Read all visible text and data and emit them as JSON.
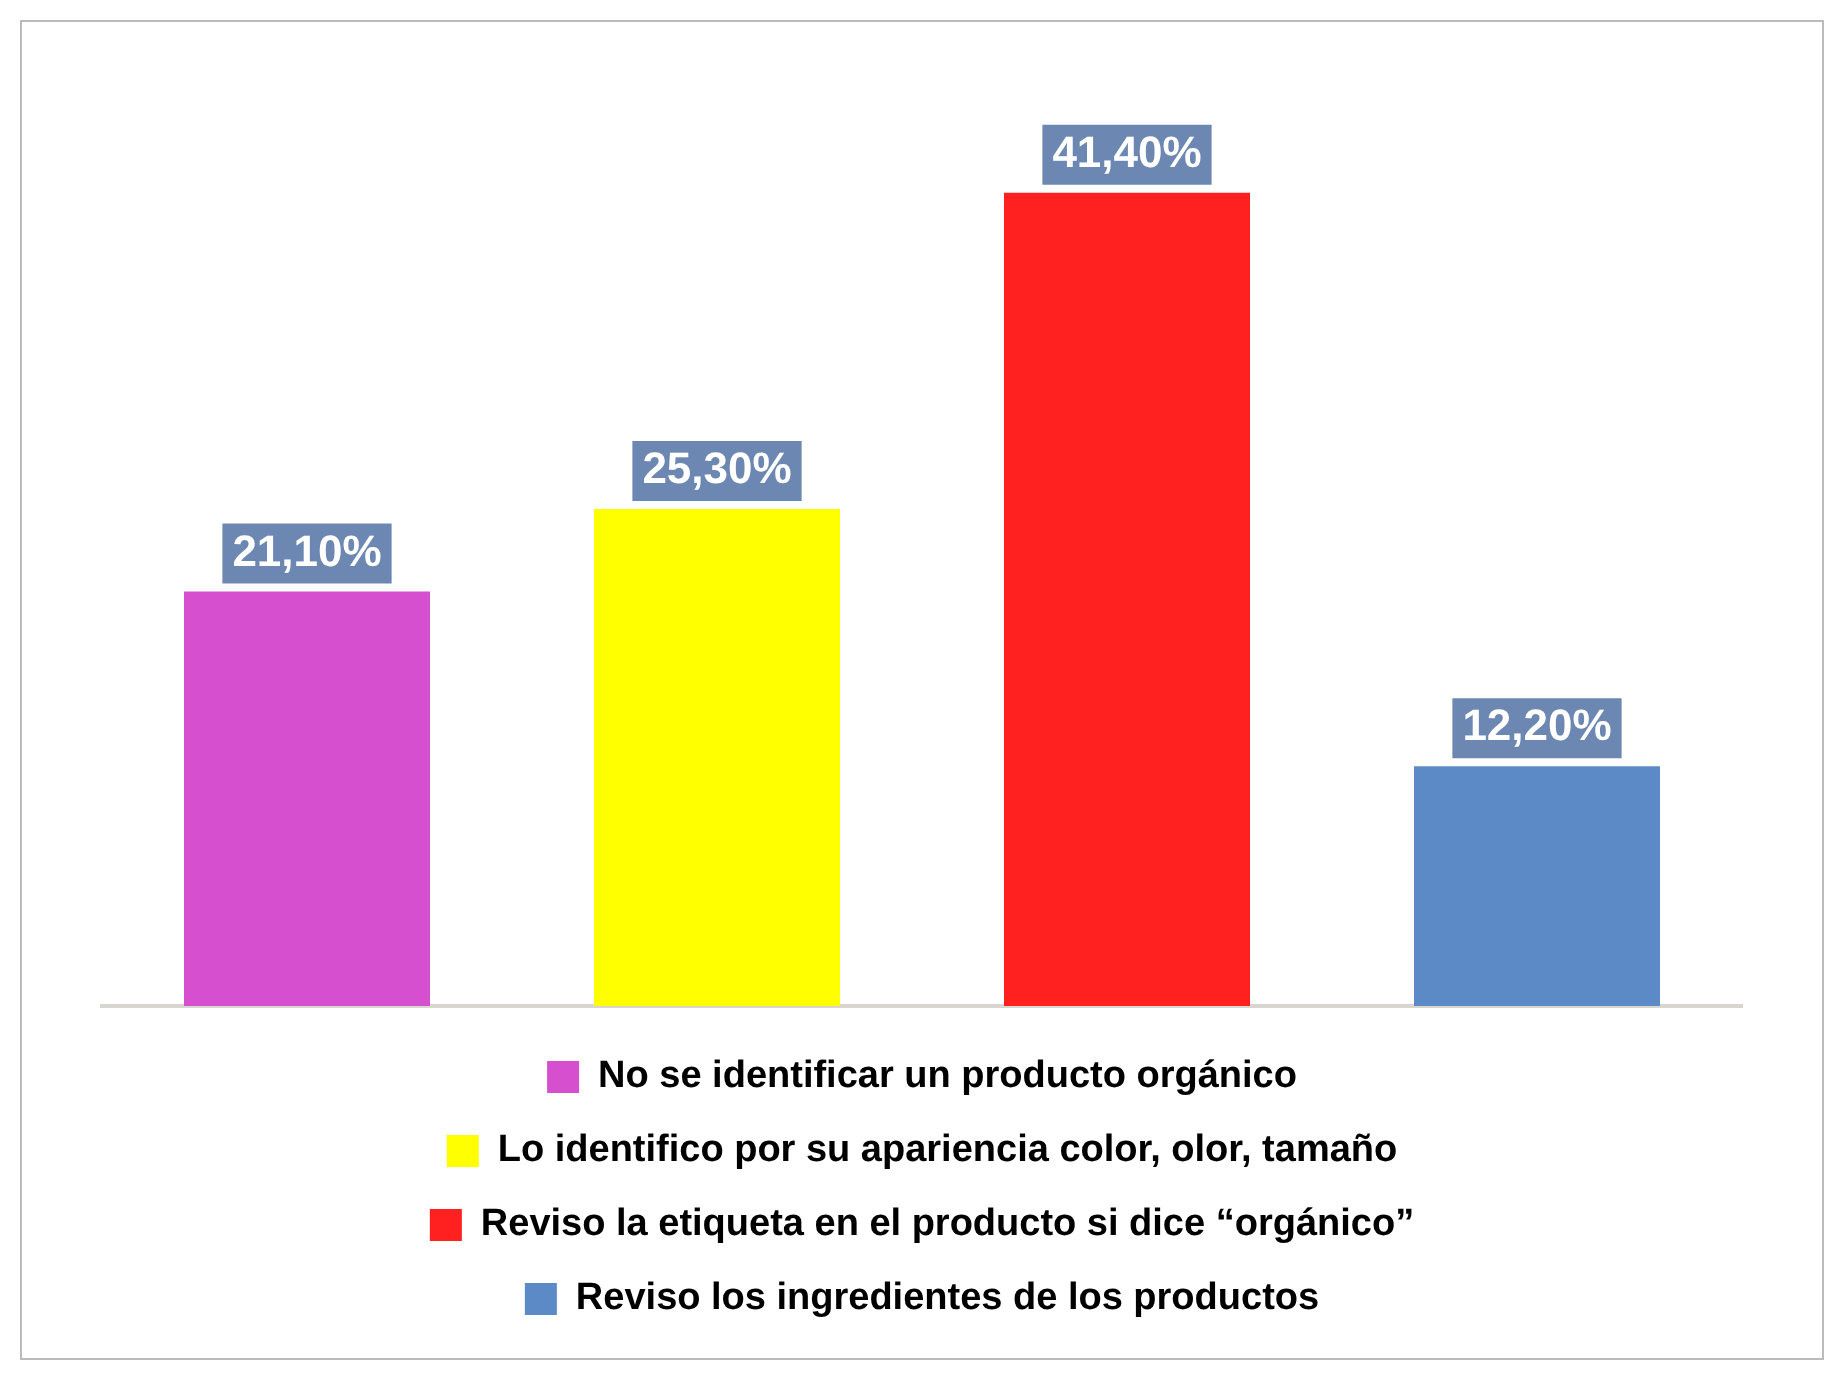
{
  "chart_data": {
    "type": "bar",
    "categories": [
      null,
      null,
      null,
      null
    ],
    "series": [
      {
        "name": "No se identificar un producto orgánico",
        "color": "#d54fcf",
        "values": [
          21.1,
          null,
          null,
          null
        ],
        "value_labels": [
          "21,10%",
          null,
          null,
          null
        ]
      },
      {
        "name": "Lo identifico por su apariencia color, olor, tamaño",
        "color": "#ffff00",
        "values": [
          null,
          25.3,
          null,
          null
        ],
        "value_labels": [
          null,
          "25,30%",
          null,
          null
        ]
      },
      {
        "name": "Reviso la etiqueta en el producto si dice “orgánico”",
        "color": "#ff2020",
        "values": [
          null,
          null,
          41.4,
          null
        ],
        "value_labels": [
          null,
          null,
          "41,40%",
          null
        ]
      },
      {
        "name": "Reviso los ingredientes de los productos",
        "color": "#5b8ac6",
        "values": [
          null,
          null,
          null,
          12.2
        ],
        "value_labels": [
          null,
          null,
          null,
          "12,20%"
        ]
      }
    ],
    "stacked": true,
    "legend": "bottom",
    "grid": false,
    "tick_labels": false
  }
}
